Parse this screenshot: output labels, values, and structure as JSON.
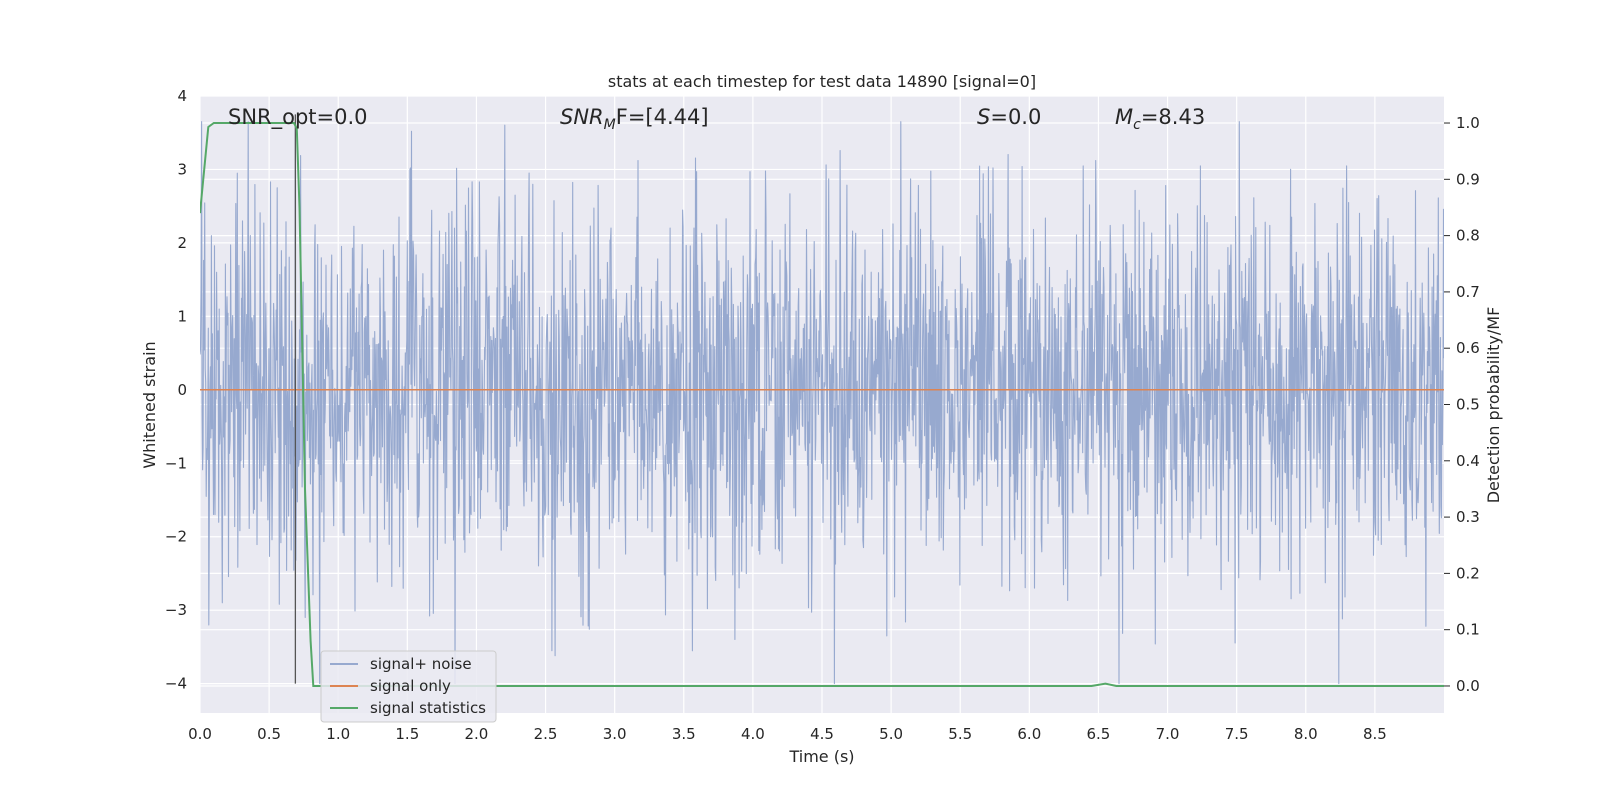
{
  "chart_data": {
    "type": "line",
    "title": "stats at each timestep for test data 14890 [signal=0]",
    "xlabel": "Time (s)",
    "ylabel": "Whitened strain",
    "y2label": "Detection probability/MF",
    "xlim": [
      0.0,
      9.0
    ],
    "ylim": [
      -4.4,
      4.0
    ],
    "y2lim": [
      -0.048,
      1.048
    ],
    "x_ticks": [
      0.0,
      0.5,
      1.0,
      1.5,
      2.0,
      2.5,
      3.0,
      3.5,
      4.0,
      4.5,
      5.0,
      5.5,
      6.0,
      6.5,
      7.0,
      7.5,
      8.0,
      8.5
    ],
    "x_tick_labels": [
      "0.0",
      "0.5",
      "1.0",
      "1.5",
      "2.0",
      "2.5",
      "3.0",
      "3.5",
      "4.0",
      "4.5",
      "5.0",
      "5.5",
      "6.0",
      "6.5",
      "7.0",
      "7.5",
      "8.0",
      "8.5"
    ],
    "y_ticks": [
      4,
      3,
      2,
      1,
      0,
      -1,
      -2,
      -3,
      -4
    ],
    "y_tick_labels": [
      "4",
      "3",
      "2",
      "1",
      "0",
      "−1",
      "−2",
      "−3",
      "−4"
    ],
    "y2_ticks": [
      1.0,
      0.9,
      0.8,
      0.7,
      0.6,
      0.5,
      0.4,
      0.3,
      0.2,
      0.1,
      0.0
    ],
    "y2_tick_labels": [
      "1.0",
      "0.9",
      "0.8",
      "0.7",
      "0.6",
      "0.5",
      "0.4",
      "0.3",
      "0.2",
      "0.1",
      "0.0"
    ],
    "grid": true,
    "legend_position": "lower-left",
    "annotations": {
      "snr_opt": "SNR_opt=0.0",
      "snr_mf_main": "SNR",
      "snr_mf_sub": "M",
      "snr_mf_rest": "F=[4.44]",
      "s_main": "S",
      "s_rest": "=0.0",
      "mc_main": "M",
      "mc_sub": "c",
      "mc_rest": "=8.43"
    },
    "series": [
      {
        "name": "signal+ noise",
        "color": "#97a9cf",
        "noise_envelope": {
          "typical_amplitude": 1.2,
          "max": 3.65,
          "min": -4.0
        },
        "peaks": [
          {
            "x": 1.53,
            "y": 3.52
          },
          {
            "x": 5.07,
            "y": 3.65
          },
          {
            "x": 0.69,
            "y": 3.62
          },
          {
            "x": 3.17,
            "y": 3.12
          },
          {
            "x": 1.52,
            "y": 3.0
          },
          {
            "x": 2.38,
            "y": 2.95
          },
          {
            "x": 3.98,
            "y": 2.97
          },
          {
            "x": 0.51,
            "y": 2.83
          },
          {
            "x": 2.02,
            "y": 2.83
          },
          {
            "x": 4.59,
            "y": -4.0
          },
          {
            "x": 2.57,
            "y": -3.62
          },
          {
            "x": 3.87,
            "y": -3.4
          },
          {
            "x": 4.97,
            "y": -3.35
          },
          {
            "x": 1.66,
            "y": -3.08
          },
          {
            "x": 8.87,
            "y": -3.22
          },
          {
            "x": 0.76,
            "y": -3.1
          },
          {
            "x": 0.16,
            "y": -2.9
          },
          {
            "x": 3.67,
            "y": -2.98
          }
        ]
      },
      {
        "name": "signal only",
        "color": "#dd8452",
        "x": [
          0.0,
          9.0
        ],
        "y": [
          0.0,
          0.0
        ]
      },
      {
        "name": "signal statistics",
        "color": "#55a868",
        "axis": "right",
        "x": [
          0.0,
          0.06,
          0.1,
          0.2,
          0.3,
          0.4,
          0.5,
          0.6,
          0.68,
          0.7,
          0.72,
          0.74,
          0.76,
          0.8,
          0.82,
          1.0,
          2.0,
          3.0,
          4.0,
          5.0,
          6.0,
          6.45,
          6.55,
          6.63,
          7.0,
          8.0,
          9.0
        ],
        "y": [
          0.84,
          0.993,
          1.0,
          1.0,
          1.0,
          1.0,
          1.0,
          1.0,
          1.0,
          0.99,
          0.85,
          0.6,
          0.35,
          0.08,
          0.0,
          0.0,
          0.0,
          0.0,
          0.0,
          0.0,
          0.0,
          0.0,
          0.004,
          0.0,
          0.0,
          0.0,
          0.0
        ]
      }
    ],
    "vline": {
      "x": 0.69,
      "y_from": -4.0,
      "y_to": 3.75,
      "color": "#555555"
    }
  }
}
